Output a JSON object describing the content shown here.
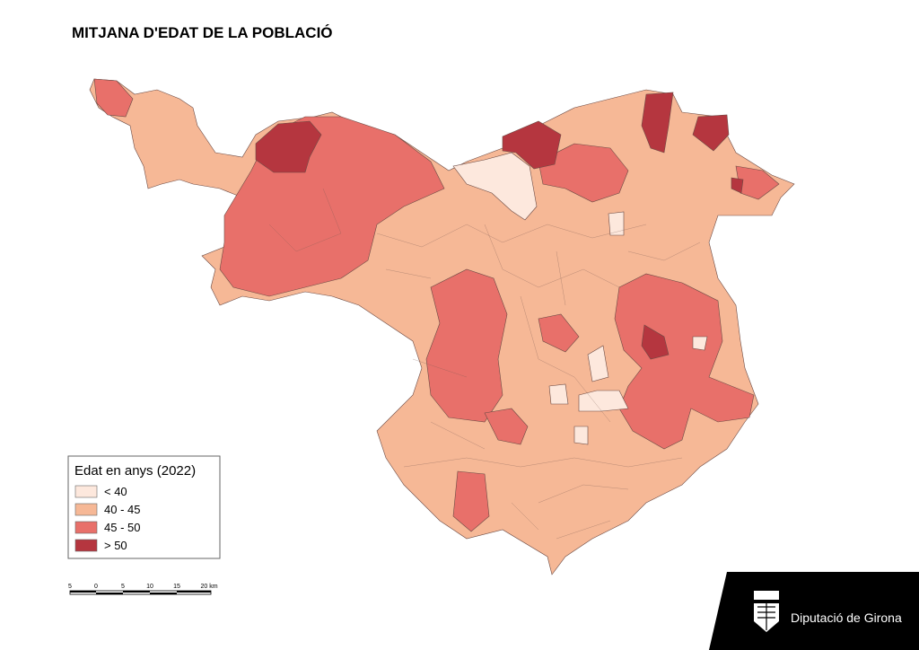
{
  "title": "MITJANA D'EDAT DE LA POBLACIÓ",
  "legend": {
    "title": "Edat en anys (2022)",
    "items": [
      {
        "label": "< 40",
        "color": "#fde8dd"
      },
      {
        "label": "40 - 45",
        "color": "#f6b896"
      },
      {
        "label": "45 - 50",
        "color": "#e8706a"
      },
      {
        "label": "> 50",
        "color": "#b5363f"
      }
    ]
  },
  "scale_bar": {
    "labels": [
      "5",
      "0",
      "5",
      "10",
      "15",
      "20 km"
    ]
  },
  "logo": {
    "text": "Diputació de Girona"
  }
}
